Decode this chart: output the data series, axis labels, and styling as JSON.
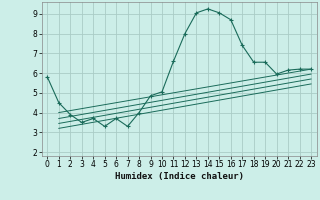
{
  "xlabel": "Humidex (Indice chaleur)",
  "bg_color": "#cceee8",
  "grid_color": "#aaccc6",
  "line_color": "#1a6b5a",
  "xlim": [
    -0.5,
    23.5
  ],
  "ylim": [
    1.8,
    9.6
  ],
  "xticks": [
    0,
    1,
    2,
    3,
    4,
    5,
    6,
    7,
    8,
    9,
    10,
    11,
    12,
    13,
    14,
    15,
    16,
    17,
    18,
    19,
    20,
    21,
    22,
    23
  ],
  "yticks": [
    2,
    3,
    4,
    5,
    6,
    7,
    8,
    9
  ],
  "main_series_x": [
    0,
    1,
    2,
    3,
    4,
    5,
    6,
    7,
    8,
    9,
    10,
    11,
    12,
    13,
    14,
    15,
    16,
    17,
    18,
    19,
    20,
    21,
    22,
    23
  ],
  "main_series_y": [
    5.8,
    4.5,
    3.9,
    3.5,
    3.7,
    3.3,
    3.7,
    3.3,
    4.0,
    4.85,
    5.05,
    6.6,
    8.0,
    9.05,
    9.25,
    9.05,
    8.7,
    7.4,
    6.55,
    6.55,
    5.95,
    6.15,
    6.2,
    6.2
  ],
  "linear_lines": [
    {
      "x": [
        1,
        23
      ],
      "y": [
        4.0,
        6.2
      ]
    },
    {
      "x": [
        1,
        23
      ],
      "y": [
        3.7,
        5.95
      ]
    },
    {
      "x": [
        1,
        23
      ],
      "y": [
        3.45,
        5.7
      ]
    },
    {
      "x": [
        1,
        23
      ],
      "y": [
        3.2,
        5.45
      ]
    }
  ]
}
